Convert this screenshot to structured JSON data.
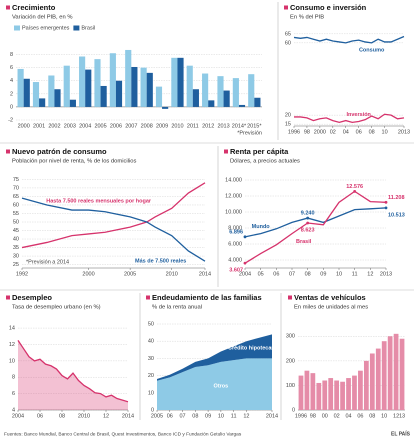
{
  "chart_data": [
    {
      "type": "bar",
      "title": "Crecimiento",
      "subtitle": "Variación del PIB, en %",
      "categories": [
        "2000",
        "2001",
        "2002",
        "2003",
        "2004",
        "2005",
        "2006",
        "2007",
        "2008",
        "2009",
        "2010",
        "2011",
        "2012",
        "2013",
        "2014*",
        "2015*"
      ],
      "series": [
        {
          "name": "Países emergentes",
          "color": "#8ecae6",
          "values": [
            5.8,
            3.8,
            4.8,
            6.3,
            7.7,
            7.3,
            8.2,
            8.7,
            6.0,
            3.1,
            7.5,
            6.3,
            5.1,
            4.7,
            4.4,
            5.0
          ]
        },
        {
          "name": "Brasil",
          "color": "#1f5f9e",
          "values": [
            4.3,
            1.3,
            2.7,
            1.1,
            5.7,
            3.2,
            4.0,
            6.1,
            5.2,
            -0.3,
            7.5,
            2.7,
            1.0,
            2.5,
            0.3,
            1.4
          ]
        }
      ],
      "ylim": [
        -2,
        9
      ],
      "yticks": [
        -2,
        0,
        2,
        4,
        6,
        8
      ],
      "grid": true,
      "legend": "top-left",
      "note": "*Previsión"
    },
    {
      "type": "line",
      "title": "Consumo e inversión",
      "subtitle": "En % del PIB",
      "x": [
        1996,
        1997,
        1998,
        1999,
        2000,
        2001,
        2002,
        2003,
        2004,
        2005,
        2006,
        2007,
        2008,
        2009,
        2010,
        2011,
        2012,
        2013
      ],
      "series": [
        {
          "name": "Consumo",
          "color": "#1f5f9e",
          "values": [
            63,
            62.5,
            63,
            62,
            61,
            62,
            61,
            60.5,
            60,
            61,
            61.5,
            60.5,
            60,
            62,
            60.5,
            60.5,
            62,
            63.5
          ]
        },
        {
          "name": "Inversión",
          "color": "#d6336c",
          "values": [
            19,
            19,
            18.5,
            17,
            18,
            18.5,
            17,
            16,
            17,
            16,
            16.5,
            17.5,
            19.5,
            18,
            20.5,
            20,
            18,
            18.5
          ]
        }
      ],
      "xlim": [
        1996,
        2013
      ],
      "xticks": [
        1996,
        {
          "value": 1998,
          "label": "98"
        },
        2000,
        {
          "value": 2002,
          "label": "02"
        },
        {
          "value": 2004,
          "label": "04"
        },
        {
          "value": 2006,
          "label": "06"
        },
        {
          "value": 2008,
          "label": "08"
        },
        {
          "value": 2010,
          "label": "10"
        },
        2013
      ],
      "ylim": [
        14,
        66
      ],
      "yticks": [
        15,
        20,
        60,
        65
      ],
      "grid": true
    },
    {
      "type": "line",
      "title": "Nuevo patrón de consumo",
      "subtitle": "Población por nivel de renta, % de los domicilios",
      "x": [
        1992,
        1995,
        1998,
        2000,
        2002,
        2003,
        2005,
        2007,
        2008,
        2010,
        2012,
        2014
      ],
      "series": [
        {
          "name": "Hasta 7.500 reales mensuales por hogar",
          "color": "#d6336c",
          "values": [
            35,
            38,
            42,
            43,
            44,
            45,
            47,
            50,
            53,
            58,
            67,
            73
          ]
        },
        {
          "name": "Más de 7.500 reales",
          "color": "#1f5f9e",
          "values": [
            64,
            60,
            57,
            57,
            56,
            55,
            53,
            50,
            47,
            42,
            33,
            27
          ]
        }
      ],
      "xlim": [
        1992,
        2014
      ],
      "xticks": [
        1992,
        2000,
        2005,
        2010,
        2014
      ],
      "ylim": [
        23,
        77
      ],
      "yticks": [
        25,
        30,
        35,
        40,
        45,
        50,
        55,
        60,
        65,
        70,
        75
      ],
      "grid": true,
      "note": "*Previsión a 2014"
    },
    {
      "type": "line",
      "title": "Renta per cápita",
      "subtitle": "Dólares, a precios actuales",
      "x": [
        2004,
        2005,
        2006,
        2007,
        2008,
        2009,
        2010,
        2011,
        2012,
        2013
      ],
      "series": [
        {
          "name": "Mundo",
          "color": "#1f5f9e",
          "values": [
            6896,
            7300,
            7900,
            8700,
            9240,
            8700,
            9500,
            10300,
            10400,
            10513
          ],
          "value_labels": [
            "6.896",
            null,
            null,
            null,
            "9.240",
            null,
            null,
            null,
            null,
            "10.513"
          ]
        },
        {
          "name": "Brasil",
          "color": "#d6336c",
          "values": [
            3607,
            4800,
            5900,
            7300,
            8623,
            8400,
            11200,
            12576,
            11300,
            11208
          ],
          "value_labels": [
            "3.607",
            null,
            null,
            null,
            "8.623",
            null,
            null,
            "12.576",
            null,
            "11.208"
          ]
        }
      ],
      "xlim": [
        2004,
        2013
      ],
      "xticks": [
        2004,
        {
          "value": 2005,
          "label": "05"
        },
        {
          "value": 2006,
          "label": "06"
        },
        {
          "value": 2007,
          "label": "07"
        },
        {
          "value": 2008,
          "label": "08"
        },
        {
          "value": 2009,
          "label": "09"
        },
        {
          "value": 2010,
          "label": "10"
        },
        {
          "value": 2011,
          "label": "11"
        },
        {
          "value": 2012,
          "label": "12"
        },
        2013
      ],
      "ylim": [
        3000,
        14500
      ],
      "yticks": [
        {
          "value": 4000,
          "label": "4.000"
        },
        {
          "value": 6000,
          "label": "6.000"
        },
        {
          "value": 8000,
          "label": "8.000"
        },
        {
          "value": 10000,
          "label": "10.000"
        },
        {
          "value": 12000,
          "label": "12.000"
        },
        {
          "value": 14000,
          "label": "14.000"
        }
      ],
      "grid": true
    },
    {
      "type": "area",
      "title": "Desempleo",
      "subtitle": "Tasa de desempleo urbano (en %)",
      "x": [
        2004,
        2004.5,
        2005,
        2005.5,
        2006,
        2006.5,
        2007,
        2007.5,
        2008,
        2008.5,
        2009,
        2009.5,
        2010,
        2010.5,
        2011,
        2011.5,
        2012,
        2012.5,
        2013,
        2013.5,
        2014
      ],
      "series": [
        {
          "name": "Desempleo",
          "color": "#d6336c",
          "values": [
            12.5,
            11.5,
            10.5,
            10,
            10.2,
            9.6,
            9.4,
            9,
            8.2,
            7.8,
            8.5,
            7.6,
            7,
            6.6,
            6.1,
            6,
            5.6,
            5.8,
            5.4,
            5.2,
            5
          ]
        }
      ],
      "xlim": [
        2004,
        2014
      ],
      "xticks": [
        2004,
        {
          "value": 2006,
          "label": "06"
        },
        {
          "value": 2008,
          "label": "08"
        },
        2010,
        {
          "value": 2012,
          "label": "12"
        },
        2014
      ],
      "ylim": [
        4,
        14.5
      ],
      "yticks": [
        4,
        6,
        8,
        10,
        12,
        14
      ],
      "grid": true
    },
    {
      "type": "area",
      "title": "Endeudamiento de las familias",
      "subtitle": "% de la renta anual",
      "stacked": true,
      "x": [
        2005,
        2006,
        2007,
        2008,
        2009,
        2010,
        2011,
        2012,
        2013,
        2014
      ],
      "series": [
        {
          "name": "Otros",
          "color": "#8ecae6",
          "values": [
            17,
            19,
            22,
            25,
            26,
            28,
            29,
            30,
            30,
            30
          ]
        },
        {
          "name": "Crédito hipotecario",
          "color": "#1f5f9e",
          "values": [
            1,
            1.5,
            2,
            3,
            4,
            6,
            8,
            10,
            12,
            14
          ]
        }
      ],
      "xlim": [
        2005,
        2014
      ],
      "xticks": [
        2005,
        {
          "value": 2006,
          "label": "06"
        },
        {
          "value": 2007,
          "label": "07"
        },
        {
          "value": 2008,
          "label": "08"
        },
        {
          "value": 2009,
          "label": "09"
        },
        {
          "value": 2010,
          "label": "10"
        },
        {
          "value": 2011,
          "label": "11"
        },
        {
          "value": 2012,
          "label": "12"
        },
        2014
      ],
      "ylim": [
        0,
        50
      ],
      "yticks": [
        0,
        10,
        20,
        30,
        40,
        50
      ],
      "grid": true
    },
    {
      "type": "bar",
      "title": "Ventas de vehículos",
      "subtitle": "En miles de unidades al mes",
      "categories": [
        "1996",
        null,
        "98",
        null,
        "00",
        null,
        "02",
        null,
        "04",
        null,
        "06",
        null,
        "08",
        null,
        "10",
        null,
        "12",
        "13"
      ],
      "series": [
        {
          "name": "Ventas",
          "color": "#e58ca8",
          "values": [
            140,
            160,
            150,
            110,
            120,
            130,
            120,
            115,
            130,
            140,
            160,
            200,
            230,
            250,
            280,
            300,
            310,
            290
          ]
        }
      ],
      "ylim": [
        0,
        350
      ],
      "yticks": [
        0,
        100,
        200,
        300
      ],
      "grid": true
    }
  ],
  "source": "Fuentes: Banco Mundial, Banco Central de Brasil, Quest Investimentos, Banco ICD y Fundación Getulio Vargas",
  "credit": "EL PAÍS"
}
